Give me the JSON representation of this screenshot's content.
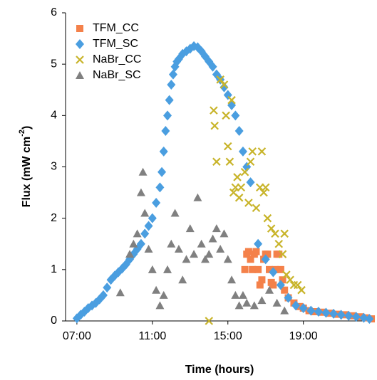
{
  "chart_data": {
    "type": "scatter",
    "xlabel": "Time (hours)",
    "ylabel": {
      "text": "Flux (mW cm",
      "superscript": "-2",
      "suffix": ")"
    },
    "xlim": [
      6.4,
      22.75
    ],
    "ylim": [
      0,
      6
    ],
    "xticks": [
      {
        "value": 7,
        "label": "07:00"
      },
      {
        "value": 11,
        "label": "11:00"
      },
      {
        "value": 15,
        "label": "15:00"
      },
      {
        "value": 19,
        "label": "19:00"
      }
    ],
    "yticks": [
      0,
      1,
      2,
      3,
      4,
      5,
      6
    ],
    "legend": "top-left",
    "series": [
      {
        "name": "TFM_CC",
        "color": "#f4814a",
        "marker": "square",
        "x": [
          15.9,
          16.0,
          16.1,
          16.2,
          16.3,
          16.4,
          16.5,
          16.6,
          16.7,
          16.8,
          16.9,
          17.0,
          17.1,
          17.2,
          17.3,
          17.4,
          17.5,
          17.6,
          17.7,
          17.8,
          17.9,
          18.0,
          18.2,
          18.5,
          18.8,
          19.0,
          19.3,
          19.6,
          20.0,
          20.4,
          20.8,
          21.2,
          21.6,
          22.0,
          22.3,
          22.6
        ],
        "values": [
          1.0,
          1.3,
          1.35,
          1.2,
          1.0,
          1.3,
          1.35,
          1.0,
          0.7,
          0.8,
          1.2,
          1.3,
          1.3,
          1.0,
          0.75,
          0.7,
          1.0,
          1.3,
          1.3,
          1.0,
          0.8,
          0.6,
          0.45,
          0.35,
          0.28,
          0.25,
          0.2,
          0.18,
          0.17,
          0.15,
          0.13,
          0.12,
          0.1,
          0.08,
          0.06,
          0.04
        ]
      },
      {
        "name": "TFM_SC",
        "color": "#4a9ee0",
        "marker": "diamond",
        "x": [
          7.0,
          7.2,
          7.4,
          7.6,
          7.8,
          8.0,
          8.2,
          8.4,
          8.6,
          8.8,
          9.0,
          9.2,
          9.4,
          9.6,
          9.8,
          10.0,
          10.2,
          10.4,
          10.6,
          10.8,
          11.0,
          11.2,
          11.4,
          11.5,
          11.6,
          11.7,
          11.8,
          11.9,
          12.0,
          12.1,
          12.2,
          12.3,
          12.4,
          12.6,
          12.8,
          13.0,
          13.2,
          13.4,
          13.6,
          13.8,
          14.0,
          14.2,
          14.4,
          14.6,
          14.8,
          15.0,
          15.2,
          15.4,
          15.6,
          15.8,
          16.0,
          16.2,
          16.6,
          17.0,
          17.4,
          17.8,
          18.2,
          18.6,
          19.0,
          19.4,
          19.8,
          20.2,
          20.6,
          21.0,
          21.4,
          21.8,
          22.2,
          22.5
        ],
        "values": [
          0.05,
          0.12,
          0.18,
          0.25,
          0.3,
          0.35,
          0.42,
          0.5,
          0.65,
          0.8,
          0.88,
          0.95,
          1.02,
          1.1,
          1.2,
          1.3,
          1.4,
          1.5,
          1.7,
          1.85,
          2.0,
          2.3,
          2.6,
          2.9,
          3.3,
          3.7,
          4.0,
          4.3,
          4.6,
          4.8,
          4.95,
          5.05,
          5.1,
          5.2,
          5.25,
          5.3,
          5.35,
          5.33,
          5.25,
          5.15,
          5.05,
          4.95,
          4.8,
          4.7,
          4.55,
          4.4,
          4.2,
          4.0,
          3.7,
          3.3,
          3.0,
          2.7,
          1.5,
          1.2,
          0.95,
          0.7,
          0.45,
          0.3,
          0.25,
          0.2,
          0.18,
          0.16,
          0.14,
          0.12,
          0.1,
          0.08,
          0.06,
          0.04
        ]
      },
      {
        "name": "NaBr_CC",
        "color": "#c8b42a",
        "marker": "x",
        "x": [
          14.0,
          14.25,
          14.3,
          14.4,
          14.6,
          14.8,
          14.9,
          15.0,
          15.1,
          15.2,
          15.3,
          15.4,
          15.5,
          15.6,
          15.7,
          15.9,
          16.1,
          16.2,
          16.3,
          16.5,
          16.7,
          16.8,
          16.9,
          17.0,
          17.1,
          17.3,
          17.5,
          17.7,
          17.9,
          18.0,
          18.1,
          18.3,
          18.5,
          18.7,
          18.9
        ],
        "values": [
          0.0,
          4.1,
          3.8,
          3.1,
          4.7,
          4.6,
          4.0,
          3.4,
          3.1,
          4.3,
          2.5,
          2.6,
          2.8,
          2.4,
          2.6,
          2.9,
          2.3,
          3.1,
          3.3,
          2.2,
          2.6,
          3.3,
          2.5,
          2.6,
          2.0,
          1.8,
          1.7,
          1.5,
          1.3,
          1.7,
          0.9,
          0.8,
          0.7,
          0.7,
          0.6
        ]
      },
      {
        "name": "NaBr_SC",
        "color": "#808080",
        "marker": "triangle",
        "x": [
          9.3,
          9.8,
          10.0,
          10.2,
          10.4,
          10.5,
          10.6,
          10.8,
          11.0,
          11.2,
          11.4,
          11.6,
          11.8,
          12.0,
          12.2,
          12.4,
          12.6,
          12.8,
          13.0,
          13.2,
          13.4,
          13.6,
          13.8,
          14.0,
          14.2,
          14.4,
          14.6,
          14.8,
          15.0,
          15.2,
          15.4,
          15.6,
          15.8,
          16.0,
          16.4,
          16.8,
          17.2,
          17.6,
          18.0
        ],
        "values": [
          0.55,
          1.3,
          1.5,
          1.7,
          2.5,
          2.9,
          2.1,
          1.4,
          1.0,
          0.6,
          0.3,
          0.5,
          1.0,
          1.5,
          2.1,
          1.4,
          0.8,
          1.2,
          1.8,
          1.3,
          2.4,
          1.5,
          1.2,
          1.3,
          1.6,
          1.8,
          1.4,
          1.7,
          1.2,
          0.8,
          0.5,
          0.3,
          0.5,
          0.35,
          0.3,
          0.4,
          0.6,
          0.35,
          0.2
        ]
      }
    ]
  }
}
